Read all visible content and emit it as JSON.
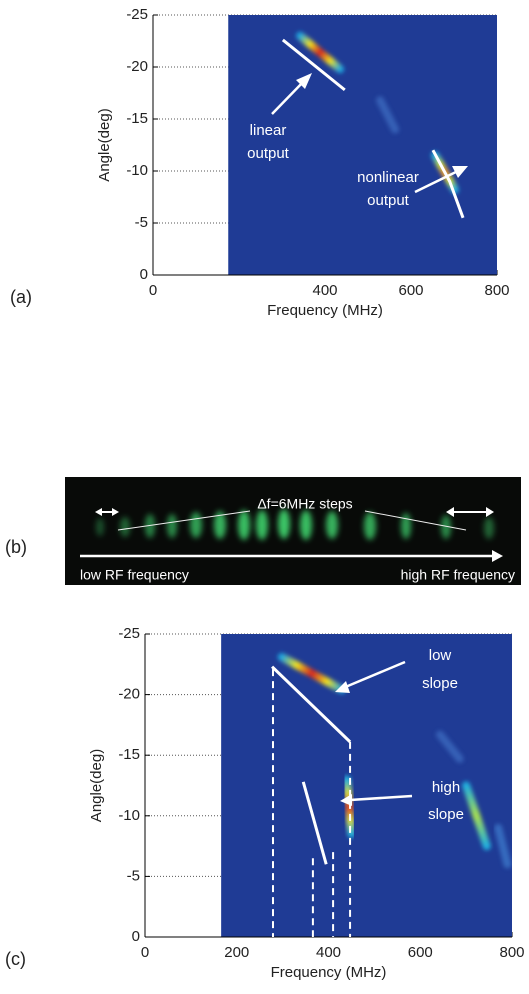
{
  "chart_data": [
    {
      "type": "heatmap",
      "panel_label": "(a)",
      "xlabel": "Frequency (MHz)",
      "ylabel": "Angle(deg)",
      "xlim": [
        0,
        800
      ],
      "ylim": [
        0,
        -25
      ],
      "xticks": [
        0,
        400,
        600,
        800
      ],
      "yticks": [
        0,
        -5,
        -10,
        -15,
        -20,
        -25
      ],
      "grid": true,
      "field_color": "#1f3b95",
      "field_xlim": [
        175,
        800
      ],
      "streaks": [
        {
          "x": [
            342,
            435
          ],
          "y": [
            -23,
            -19.8
          ],
          "colors": [
            "#1ea5e0",
            "#f2e21c",
            "#d62020"
          ]
        },
        {
          "x": [
            528,
            563
          ],
          "y": [
            -16.8,
            -14
          ],
          "colors": [
            "#3f6fc4"
          ]
        },
        {
          "x": [
            656,
            702
          ],
          "y": [
            -11.5,
            -8.2
          ],
          "colors": [
            "#20b0e0",
            "#c8e040",
            "#f09030"
          ]
        }
      ],
      "fit_lines": [
        {
          "x": [
            302,
            446
          ],
          "y": [
            -22.6,
            -17.8
          ]
        },
        {
          "x": [
            651,
            690,
            721
          ],
          "y": [
            -12,
            -9,
            -5.5
          ]
        }
      ],
      "guide_lines": [],
      "annotations": [
        [
          "linear",
          "output"
        ],
        [
          "nonlinear",
          "output"
        ]
      ]
    },
    {
      "type": "heatmap",
      "panel_label": "(c)",
      "xlabel": "Frequency (MHz)",
      "ylabel": "Angle(deg)",
      "xlim": [
        0,
        800
      ],
      "ylim": [
        0,
        -25
      ],
      "xticks": [
        0,
        200,
        400,
        600,
        800
      ],
      "yticks": [
        0,
        -5,
        -10,
        -15,
        -20,
        -25
      ],
      "grid": true,
      "field_color": "#1f3b95",
      "field_xlim": [
        166,
        800
      ],
      "streaks": [
        {
          "x": [
            298,
            429
          ],
          "y": [
            -23.1,
            -20.4
          ],
          "colors": [
            "#1ea5e0",
            "#f2e21c",
            "#d62020"
          ]
        },
        {
          "x": [
            643,
            686
          ],
          "y": [
            -16.7,
            -14.7
          ],
          "colors": [
            "#3f6fc4"
          ]
        },
        {
          "x": [
            700,
            745
          ],
          "y": [
            -12.5,
            -7.5
          ],
          "colors": [
            "#20b0e0",
            "#a8e050"
          ]
        },
        {
          "x": [
            770,
            790
          ],
          "y": [
            -9,
            -6
          ],
          "colors": [
            "#3f7fd0"
          ]
        },
        {
          "x": [
            440,
            450
          ],
          "y": [
            -13,
            -8.5
          ],
          "colors": [
            "#20b0e0",
            "#e0e040",
            "#e04020"
          ]
        }
      ],
      "fit_lines": [
        {
          "x": [
            277,
            447
          ],
          "y": [
            -22.3,
            -16.1
          ]
        },
        {
          "x": [
            345,
            395
          ],
          "y": [
            -12.8,
            -6
          ]
        }
      ],
      "guide_lines": [
        {
          "x": [
            279,
            279
          ],
          "y": [
            -22.1,
            0
          ]
        },
        {
          "x": [
            366,
            366
          ],
          "y": [
            -6.5,
            0
          ]
        },
        {
          "x": [
            410,
            410
          ],
          "y": [
            -7,
            0
          ]
        },
        {
          "x": [
            447,
            447
          ],
          "y": [
            -16.1,
            0
          ]
        }
      ],
      "annotations": [
        [
          "low",
          "slope"
        ],
        [
          "high",
          "slope"
        ]
      ]
    }
  ],
  "photo": {
    "label": "(b)",
    "caption": "Δf=6MHz steps",
    "left_text": "low RF frequency",
    "right_text": "high RF frequency"
  }
}
